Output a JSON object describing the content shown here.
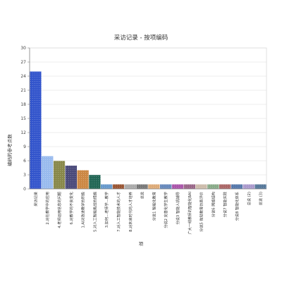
{
  "chart_data": {
    "type": "bar",
    "title": "采访记录 - 按项编码",
    "xlabel": "项",
    "ylabel": "编码的参考点数",
    "ylim": [
      0,
      30
    ],
    "yticks": [
      0,
      3,
      6,
      9,
      12,
      15,
      18,
      21,
      24,
      27,
      30
    ],
    "grid": true,
    "categories": [
      "采访记录",
      "2.对在教学中的应用",
      "4.老师运用信息的问题",
      "6.对教学的不良变化",
      "1.AI对改进教学的积极",
      "5.对人工智能挑战的措施",
      "3.如何...老师学...教学",
      "7.对人工智能技术的人才",
      "8.对未来时代的人才培养",
      "总说",
      "分说1 智能化教育",
      "分说2 完善化学生教学",
      "分说3 智能人机辅导",
      "广大一线教师的智能化BAI",
      "分说5 微就教育仿真评价",
      "分说6 网络结构",
      "分说7 智能实践",
      "分说8 智能化体系",
      "总说 (2)",
      "总说 (3)"
    ],
    "values": [
      25,
      7,
      6,
      5,
      4,
      3,
      1,
      1,
      1,
      1,
      1,
      1,
      1,
      1,
      1,
      1,
      1,
      1,
      1,
      1
    ],
    "colors": [
      "#3355cc",
      "#99bbee",
      "#88884a",
      "#4a4a7a",
      "#cc8844",
      "#226655",
      "#6699cc",
      "#995533",
      "#aaaaaa",
      "#777777",
      "#ddaa77",
      "#6688bb",
      "#aa55aa",
      "#996688",
      "#ccbbaa",
      "#88aa88",
      "#aa6666",
      "#5577aa",
      "#aa99cc",
      "#557799"
    ]
  }
}
